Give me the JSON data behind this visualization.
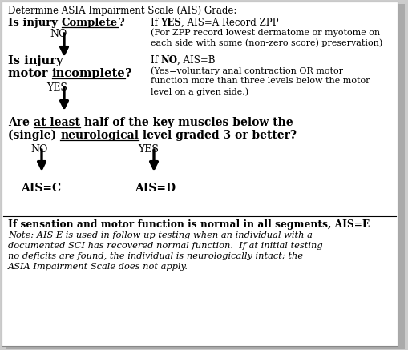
{
  "figsize": [
    5.09,
    4.37
  ],
  "dpi": 100,
  "bg_color": "#cccccc",
  "box_color": "#ffffff",
  "title": "Determine ASIA Impairment Scale (AIS) Grade:",
  "q1_parts": [
    [
      "Is injury ",
      true,
      false
    ],
    [
      "Complete",
      true,
      true
    ],
    [
      "?",
      true,
      false
    ]
  ],
  "q1_no": "NO",
  "q1_yes_pre": "If ",
  "q1_yes_bold": "YES",
  "q1_yes_post": ", AIS=A Record ZPP",
  "q1_yes_sub1": "(For ZPP record lowest dermatome or myotome on",
  "q1_yes_sub2": "each side with some (non-zero score) preservation)",
  "q2_line1": "Is injury",
  "q2_parts": [
    [
      "motor ",
      true,
      false
    ],
    [
      "incomplete",
      true,
      true
    ],
    [
      "?",
      true,
      false
    ]
  ],
  "q2_yes": "YES",
  "q2_no_pre": "If ",
  "q2_no_bold": "NO",
  "q2_no_post": ", AIS=B",
  "q2_no_sub1": "(Yes=voluntary anal contraction OR motor",
  "q2_no_sub2": "function more than three levels below the motor",
  "q2_no_sub3": "level on a given side.)",
  "q3_parts1": [
    [
      "Are ",
      true,
      false
    ],
    [
      "at least",
      true,
      true
    ],
    [
      " half of the key muscles below the",
      true,
      false
    ]
  ],
  "q3_parts2": [
    [
      "(single) ",
      true,
      false
    ],
    [
      "neurological",
      true,
      true
    ],
    [
      " level graded 3 or better?",
      true,
      false
    ]
  ],
  "q3_no": "NO",
  "q3_yes": "YES",
  "ais_c": "AIS=C",
  "ais_d": "AIS=D",
  "ais_e": "If sensation and motor function is normal in all segments, AIS=E",
  "note1": "Note: AIS E is used in follow up testing when an individual with a",
  "note2": "documented SCI has recovered normal function.  If at initial testing",
  "note3": "no deficits are found, the individual is neurologically intact; the",
  "note4": "ASIA Impairment Scale does not apply."
}
